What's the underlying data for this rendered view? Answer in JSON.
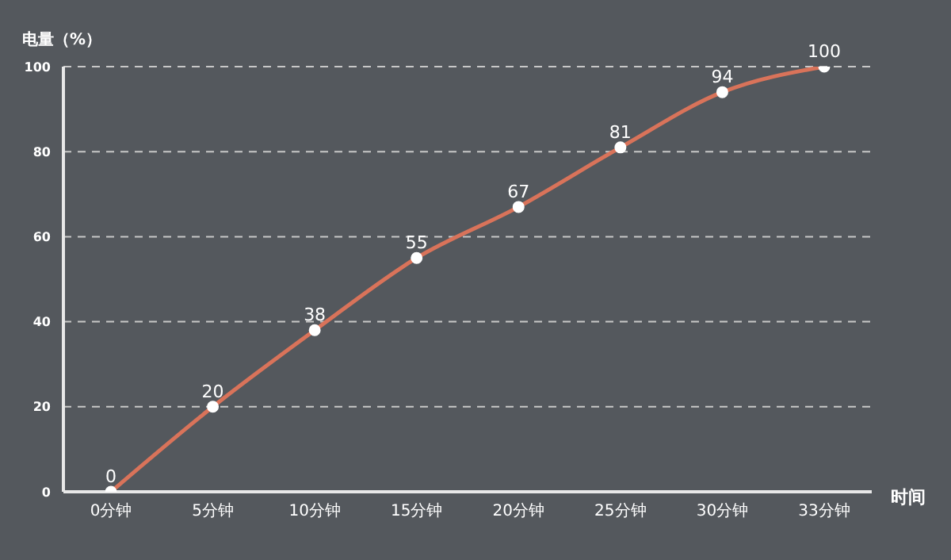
{
  "chart_data": {
    "type": "line",
    "ylabel": "电量（%）",
    "xlabel": "时间",
    "categories": [
      "0分钟",
      "5分钟",
      "10分钟",
      "15分钟",
      "20分钟",
      "25分钟",
      "30分钟",
      "33分钟"
    ],
    "series": [
      {
        "color": "#d9735a",
        "values": [
          0,
          20,
          38,
          55,
          67,
          81,
          94,
          100
        ]
      }
    ],
    "ylim": [
      0,
      100
    ],
    "yticks": [
      0,
      20,
      40,
      60,
      80,
      100
    ],
    "grid": "y",
    "marker": "circle",
    "data_labels": true,
    "legend": false,
    "line_style": "solid"
  }
}
